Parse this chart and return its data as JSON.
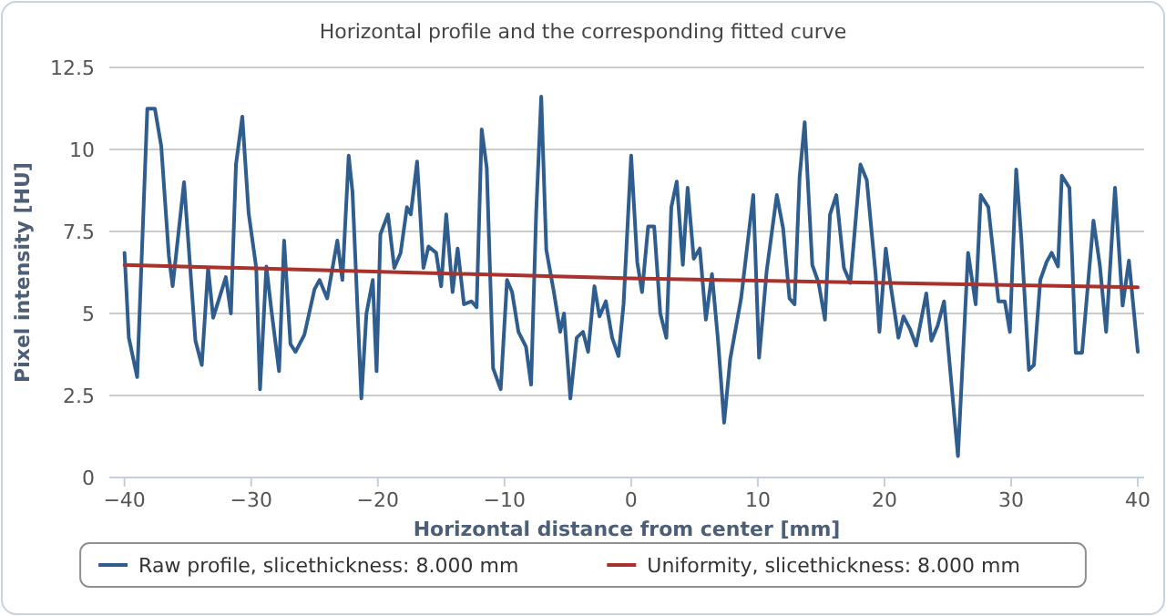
{
  "chart_data": {
    "type": "line",
    "title": "Horizontal profile and the corresponding fitted curve",
    "xlabel": "Horizontal distance from center [mm]",
    "ylabel": "Pixel intensity [HU]",
    "xlim": [
      -41.2,
      40.5
    ],
    "xticks": [
      -40,
      -30,
      -20,
      -10,
      0,
      10,
      20,
      30,
      40
    ],
    "ylim": [
      0,
      12.5
    ],
    "yticks": [
      0,
      2.5,
      5,
      7.5,
      10,
      12.5
    ],
    "grid": "y",
    "legend": "bottom",
    "marker": "none",
    "line_style": "solid",
    "series": [
      {
        "name": "Raw profile, slicethickness: 8.000 mm",
        "color": "#2e5d8e",
        "x": [
          -40,
          -39.66,
          -39.0,
          -38.2,
          -37.6,
          -37.1,
          -36.5,
          -36.2,
          -35.3,
          -34.4,
          -33.9,
          -33.4,
          -33.0,
          -32.0,
          -31.6,
          -31.2,
          -30.7,
          -30.2,
          -29.6,
          -29.3,
          -28.8,
          -28.4,
          -27.8,
          -27.4,
          -26.9,
          -26.5,
          -25.8,
          -25.0,
          -24.6,
          -24.0,
          -23.2,
          -22.8,
          -22.3,
          -22.0,
          -21.3,
          -20.9,
          -20.4,
          -20.1,
          -19.8,
          -19.2,
          -18.7,
          -18.2,
          -17.7,
          -17.4,
          -16.9,
          -16.4,
          -16.0,
          -15.4,
          -15.0,
          -14.6,
          -14.1,
          -13.7,
          -13.2,
          -12.6,
          -12.2,
          -11.8,
          -11.4,
          -10.9,
          -10.3,
          -9.8,
          -9.4,
          -8.9,
          -8.3,
          -7.9,
          -7.5,
          -7.1,
          -6.7,
          -6.1,
          -5.6,
          -5.3,
          -4.8,
          -4.3,
          -3.8,
          -3.4,
          -2.9,
          -2.5,
          -2.0,
          -1.5,
          -1.0,
          -0.6,
          0,
          0.48,
          0.86,
          1.34,
          1.82,
          2.3,
          2.78,
          3.17,
          3.6,
          4.08,
          4.46,
          4.94,
          5.42,
          5.9,
          6.38,
          6.86,
          7.34,
          7.82,
          8.68,
          9.64,
          10.1,
          10.7,
          11.5,
          12.0,
          12.5,
          12.9,
          13.3,
          13.7,
          14.3,
          14.8,
          15.3,
          15.7,
          16.2,
          16.8,
          17.3,
          18.1,
          18.6,
          19.3,
          19.6,
          20.1,
          20.5,
          21.1,
          21.5,
          22.0,
          22.5,
          23.3,
          23.7,
          24.2,
          24.7,
          25.8,
          26.6,
          27.2,
          27.6,
          28.2,
          29.0,
          29.5,
          29.9,
          30.4,
          30.8,
          31.4,
          31.8,
          32.3,
          32.8,
          33.2,
          33.7,
          34.0,
          34.6,
          35.1,
          35.6,
          36.5,
          37.0,
          37.5,
          38.2,
          38.8,
          39.3,
          40.0
        ],
        "values": [
          6.85,
          4.26,
          3.06,
          11.24,
          11.24,
          10.1,
          6.76,
          5.83,
          9.0,
          4.17,
          3.43,
          6.39,
          4.87,
          6.11,
          5.0,
          9.54,
          11.0,
          8.06,
          6.39,
          2.69,
          6.43,
          5.09,
          3.24,
          7.22,
          4.07,
          3.83,
          4.35,
          5.74,
          6.02,
          5.46,
          7.22,
          6.02,
          9.81,
          8.7,
          2.41,
          5.0,
          6.02,
          3.24,
          7.41,
          8.02,
          6.39,
          6.85,
          8.24,
          8.02,
          9.63,
          6.39,
          7.04,
          6.85,
          5.83,
          8.02,
          5.65,
          6.98,
          5.28,
          5.37,
          5.19,
          10.61,
          9.44,
          3.33,
          2.69,
          6.02,
          5.65,
          4.44,
          3.98,
          2.83,
          8.06,
          11.61,
          6.94,
          5.65,
          4.44,
          5.0,
          2.41,
          4.26,
          4.44,
          3.83,
          5.83,
          4.91,
          5.37,
          4.26,
          3.7,
          5.28,
          9.81,
          6.57,
          5.65,
          7.65,
          7.65,
          5.0,
          4.26,
          8.24,
          9.02,
          6.48,
          8.83,
          6.67,
          6.98,
          4.81,
          6.2,
          4.17,
          1.67,
          3.61,
          5.46,
          8.61,
          3.65,
          6.3,
          8.61,
          7.59,
          5.46,
          5.28,
          9.17,
          10.83,
          6.48,
          5.93,
          4.81,
          8.02,
          8.61,
          6.39,
          5.93,
          9.54,
          9.07,
          6.2,
          4.44,
          6.98,
          5.83,
          4.26,
          4.91,
          4.54,
          4.02,
          5.61,
          4.17,
          4.63,
          5.37,
          0.65,
          6.85,
          5.28,
          8.61,
          8.24,
          5.37,
          5.37,
          4.44,
          9.39,
          7.31,
          3.28,
          3.43,
          6.02,
          6.57,
          6.85,
          6.43,
          9.2,
          8.83,
          3.8,
          3.8,
          7.83,
          6.48,
          4.44,
          8.83,
          5.24,
          6.61,
          3.83
        ]
      },
      {
        "name": "Uniformity, slicethickness: 8.000 mm",
        "color": "#a8322d",
        "x": [
          -40,
          0,
          40
        ],
        "values": [
          6.48,
          6.07,
          5.8
        ]
      }
    ]
  }
}
